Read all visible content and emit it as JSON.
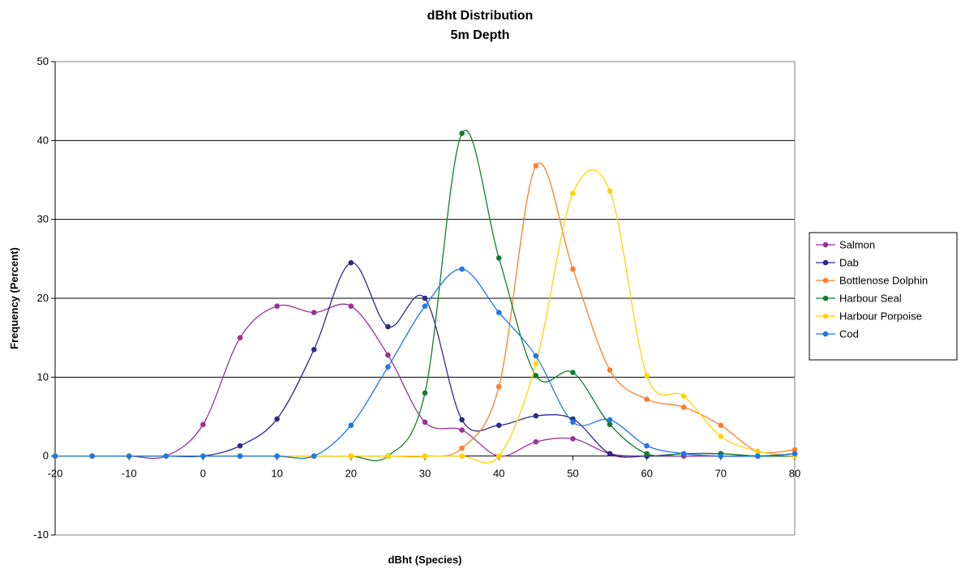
{
  "chart_data": {
    "type": "line",
    "title": "dBht Distribution",
    "subtitle": "5m Depth",
    "xlabel": "dBht (Species)",
    "ylabel": "Frequency (Percent)",
    "xlim": [
      -20,
      80
    ],
    "ylim": [
      -10,
      50
    ],
    "xticks": [
      "-20",
      "-10",
      "0",
      "10",
      "20",
      "30",
      "40",
      "50",
      "60",
      "70",
      "80"
    ],
    "yticks": [
      "-10",
      "0",
      "10",
      "20",
      "30",
      "40",
      "50"
    ],
    "grid": "horizontal",
    "legend": "right",
    "x": [
      -20,
      -15,
      -10,
      -5,
      0,
      5,
      10,
      15,
      20,
      25,
      30,
      35,
      40,
      45,
      50,
      55,
      60,
      65,
      70,
      75,
      80
    ],
    "series": [
      {
        "name": "Salmon",
        "color": "#993399",
        "values": [
          0,
          0,
          0,
          0,
          4,
          15,
          19,
          18.2,
          19,
          12.8,
          4.3,
          3.3,
          0,
          1.8,
          2.2,
          0.3,
          0,
          0,
          0,
          0,
          0
        ]
      },
      {
        "name": "Dab",
        "color": "#2B2A8C",
        "values": [
          0,
          0,
          0,
          0,
          0,
          1.3,
          4.7,
          13.5,
          24.5,
          16.4,
          20,
          4.6,
          3.9,
          5.1,
          4.7,
          0.3,
          0,
          0.3,
          0.3,
          0,
          0.3
        ]
      },
      {
        "name": "Bottlenose Dolphin",
        "color": "#FF7F27",
        "values": [
          0,
          0,
          0,
          0,
          0,
          0,
          0,
          0,
          0,
          0,
          0,
          1,
          8.8,
          36.8,
          23.7,
          10.9,
          7.2,
          6.2,
          3.9,
          0.6,
          0.8
        ]
      },
      {
        "name": "Harbour Seal",
        "color": "#0E7F2C",
        "values": [
          0,
          0,
          0,
          0,
          0,
          0,
          0,
          0,
          0,
          0,
          8,
          40.9,
          25.1,
          10.2,
          10.6,
          4,
          0.3,
          0.3,
          0.3,
          0,
          0
        ]
      },
      {
        "name": "Harbour Porpoise",
        "color": "#FFD300",
        "values": [
          0,
          0,
          0,
          0,
          0,
          0,
          0,
          0,
          0,
          0,
          0,
          0,
          0,
          11.7,
          33.3,
          33.6,
          10.2,
          7.6,
          2.5,
          0.6,
          0
        ]
      },
      {
        "name": "Cod",
        "color": "#1E78E6",
        "values": [
          0,
          0,
          0,
          0,
          0,
          0,
          0,
          0,
          3.9,
          11.3,
          19,
          23.7,
          18.2,
          12.7,
          4.3,
          4.6,
          1.3,
          0.3,
          0,
          0,
          0.3
        ]
      }
    ]
  }
}
